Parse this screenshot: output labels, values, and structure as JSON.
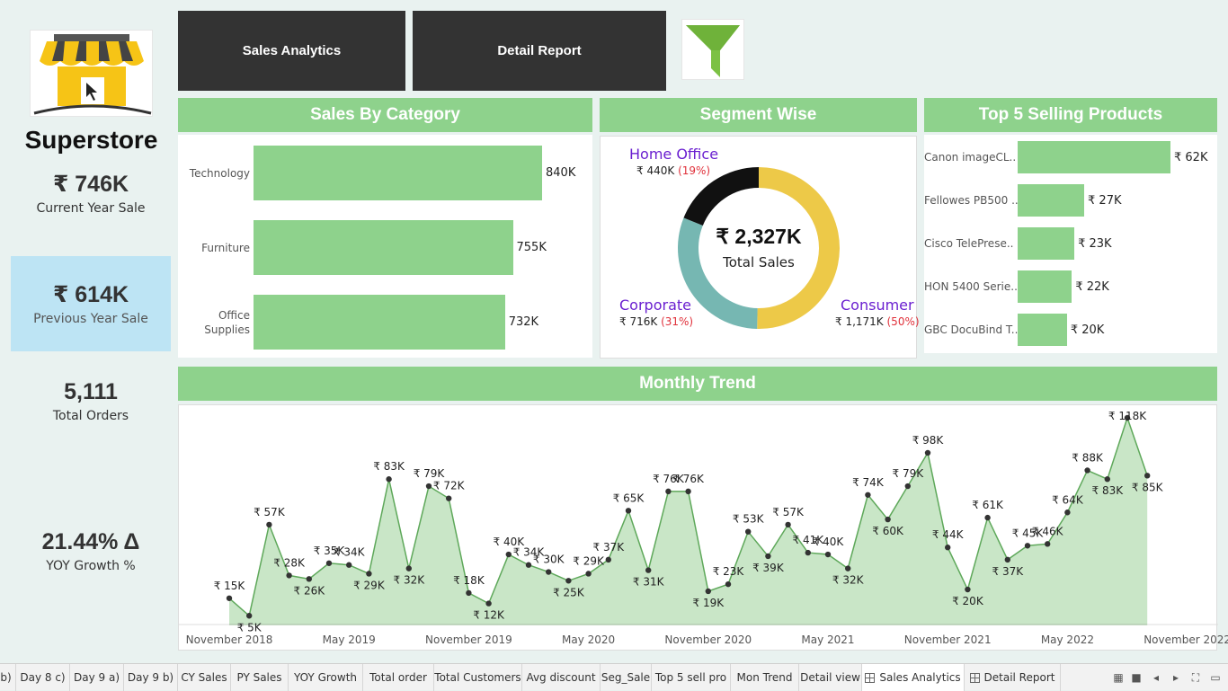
{
  "brand": "Superstore",
  "kpis": {
    "current_year": {
      "value": "₹ 746K",
      "label": "Current Year Sale"
    },
    "previous_year": {
      "value": "₹ 614K",
      "label": "Previous Year Sale"
    },
    "orders": {
      "value": "5,111",
      "label": "Total Orders"
    },
    "yoy": {
      "value": "21.44% Δ",
      "label": "YOY Growth %"
    }
  },
  "nav": {
    "sales_analytics": "Sales Analytics",
    "detail_report": "Detail Report"
  },
  "filter_icon": "funnel-icon",
  "colors": {
    "accent_green": "#8ed28c",
    "dark": "#333333",
    "py_blue": "#bde4f4",
    "donut_consumer": "#edc948",
    "donut_corporate": "#76b7b2",
    "donut_home_office": "#111111",
    "segment_text": "#6a1fd0",
    "pct_red": "#e0303a"
  },
  "sales_by_category": {
    "title": "Sales By Category",
    "chart_data": {
      "type": "bar",
      "categories": [
        "Technology",
        "Furniture",
        "Office Supplies"
      ],
      "values": [
        840,
        755,
        732
      ],
      "value_labels": [
        "840K",
        "755K",
        "732K"
      ]
    }
  },
  "segment": {
    "title": "Segment Wise",
    "center_value": "₹ 2,327K",
    "center_label": "Total Sales",
    "chart_data": {
      "type": "pie",
      "categories": [
        "Consumer",
        "Corporate",
        "Home Office"
      ],
      "values": [
        1171,
        716,
        440
      ],
      "value_labels": [
        "₹ 1,171K",
        "₹ 716K",
        "₹ 440K"
      ],
      "percent_labels": [
        "(50%)",
        "(31%)",
        "(19%)"
      ]
    }
  },
  "top5": {
    "title": "Top 5 Selling Products",
    "chart_data": {
      "type": "bar",
      "categories": [
        "Canon imageCL..",
        "Fellowes PB500 ..",
        "Cisco TelePrese..",
        "HON 5400 Serie..",
        "GBC DocuBind T.."
      ],
      "values": [
        62,
        27,
        23,
        22,
        20
      ],
      "value_labels": [
        "₹ 62K",
        "₹ 27K",
        "₹ 23K",
        "₹ 22K",
        "₹ 20K"
      ]
    }
  },
  "monthly_trend": {
    "title": "Monthly Trend",
    "chart_data": {
      "type": "area",
      "x_labels": [
        "November 2018",
        "May 2019",
        "November 2019",
        "May 2020",
        "November 2020",
        "May 2021",
        "November 2021",
        "May 2022",
        "November 2022"
      ],
      "values": [
        15,
        5,
        57,
        28,
        26,
        35,
        34,
        29,
        83,
        32,
        79,
        72,
        18,
        12,
        40,
        34,
        30,
        25,
        29,
        37,
        65,
        31,
        76,
        76,
        19,
        23,
        53,
        39,
        57,
        41,
        40,
        32,
        74,
        60,
        79,
        98,
        44,
        20,
        61,
        37,
        45,
        46,
        64,
        88,
        83,
        118,
        85
      ],
      "value_labels": [
        "₹ 15K",
        "₹ 5K",
        "₹ 57K",
        "₹ 28K",
        "₹ 26K",
        "₹ 35K",
        "₹ 34K",
        "₹ 29K",
        "₹ 83K",
        "₹ 32K",
        "₹ 79K",
        "₹ 72K",
        "₹ 18K",
        "₹ 12K",
        "₹ 40K",
        "₹ 34K",
        "₹ 30K",
        "₹ 25K",
        "₹ 29K",
        "₹ 37K",
        "₹ 65K",
        "₹ 31K",
        "₹ 76K",
        "₹ 76K",
        "₹ 19K",
        "₹ 23K",
        "₹ 53K",
        "₹ 39K",
        "₹ 57K",
        "₹ 41K",
        "₹ 40K",
        "₹ 32K",
        "₹ 74K",
        "₹ 60K",
        "₹ 79K",
        "₹ 98K",
        "₹ 44K",
        "₹ 20K",
        "₹ 61K",
        "₹ 37K",
        "₹ 45K",
        "₹ 46K",
        "₹ 64K",
        "₹ 88K",
        "₹ 83K",
        "₹ 118K",
        "₹ 85K"
      ]
    }
  },
  "tabs": [
    "b)",
    "Day 8 c)",
    "Day 9 a)",
    "Day 9 b)",
    "CY Sales",
    "PY Sales",
    "YOY Growth",
    "Total order",
    "Total Customers",
    "Avg discount",
    "Seg_Sale",
    "Top 5 sell pro",
    "Mon Trend",
    "Detail view",
    "Sales Analytics",
    "Detail Report"
  ],
  "active_tab": "Sales Analytics"
}
